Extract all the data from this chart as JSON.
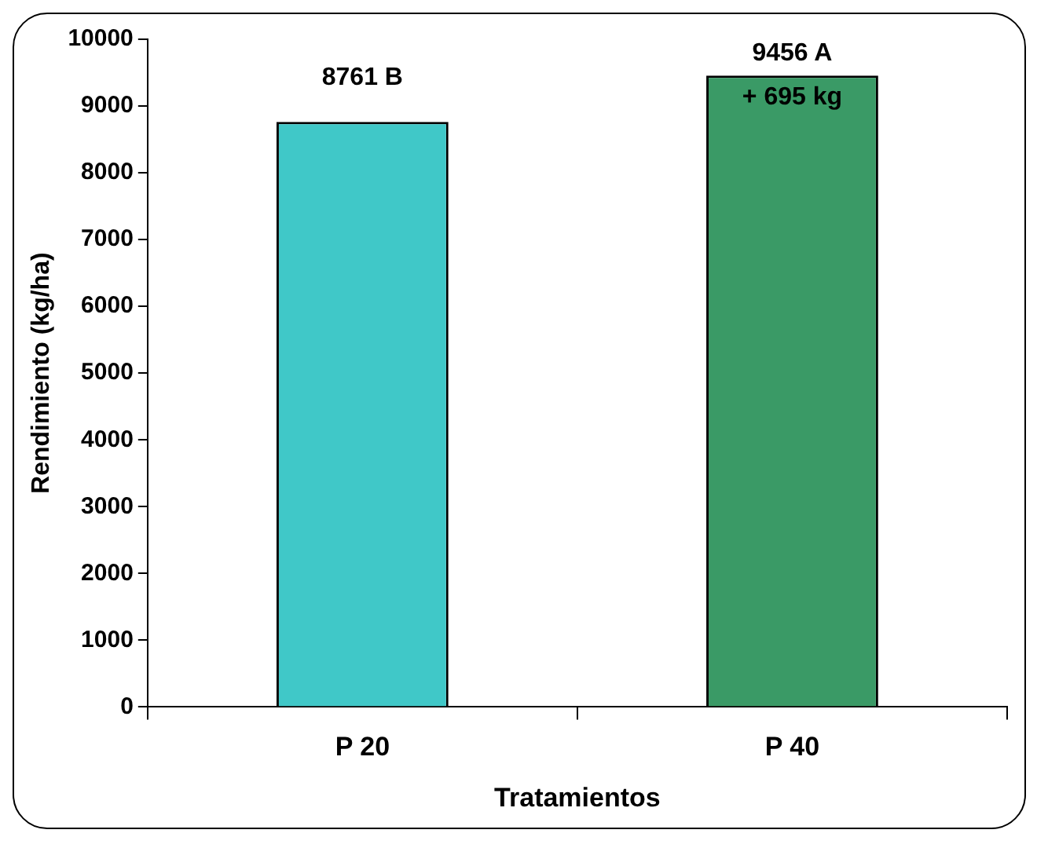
{
  "chart_data": {
    "type": "bar",
    "xlabel": "Tratamientos",
    "ylabel": "Rendimiento (kg/ha)",
    "categories": [
      "P 20",
      "P 40"
    ],
    "values": [
      8761,
      9456
    ],
    "colors": [
      "#40c8c8",
      "#3a9a66"
    ],
    "value_labels": [
      "8761 B",
      "9456 A"
    ],
    "annotations": [
      {
        "text": "+ 695 kg",
        "x": "P 40",
        "y": 9456
      }
    ],
    "ylim": [
      0,
      10000
    ],
    "yticks": [
      0,
      1000,
      2000,
      3000,
      4000,
      5000,
      6000,
      7000,
      8000,
      9000,
      10000
    ],
    "grid": false,
    "legend": false
  }
}
